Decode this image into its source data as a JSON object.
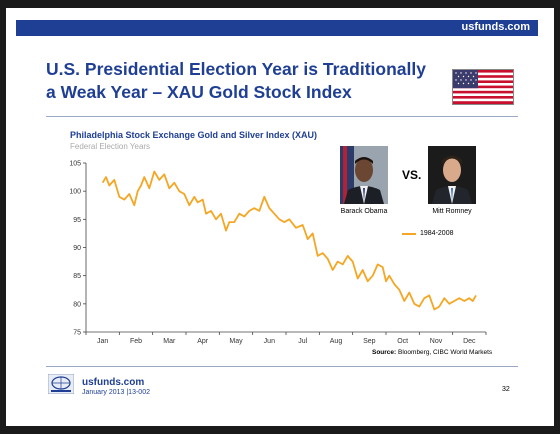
{
  "header": {
    "site": "usfunds.com"
  },
  "title_line1": "U.S. Presidential Election Year is Traditionally",
  "title_line2": "a Weak Year – XAU Gold Stock Index",
  "figure": {
    "candidate_left": "Barack Obama",
    "candidate_right": "Mitt Romney",
    "vs_label": "VS.",
    "source_label": "Source:",
    "source_text": "Bloomberg, CIBC World Markets"
  },
  "footer": {
    "site": "usfunds.com",
    "date_code": "January 2013 |13-002",
    "page_number": "32"
  },
  "icons": [
    "us-flag-icon",
    "usfunds-logo-icon"
  ],
  "colors": {
    "brand_blue": "#1f3f94",
    "series_line": "#f5a623",
    "flag_red": "#c8102e",
    "flag_blue": "#3c3b6e"
  },
  "chart_data": {
    "type": "line",
    "title": "Philadelphia Stock Exchange Gold and Silver Index (XAU)",
    "subtitle": "Federal Election Years",
    "xlabel": "",
    "ylabel": "",
    "ylim": [
      75,
      105
    ],
    "yticks": [
      75,
      80,
      85,
      90,
      95,
      100,
      105
    ],
    "categories": [
      "Jan",
      "Feb",
      "Mar",
      "Apr",
      "May",
      "Jun",
      "Jul",
      "Aug",
      "Sep",
      "Oct",
      "Nov",
      "Dec"
    ],
    "grid": false,
    "legend_position": "top-right",
    "series": [
      {
        "name": "1984-2008",
        "color": "#f5a623",
        "x": [
          0,
          0.1,
          0.2,
          0.35,
          0.5,
          0.65,
          0.8,
          0.95,
          1.05,
          1.15,
          1.25,
          1.4,
          1.55,
          1.7,
          1.85,
          2.0,
          2.15,
          2.3,
          2.45,
          2.6,
          2.75,
          2.85,
          3.0,
          3.1,
          3.25,
          3.4,
          3.55,
          3.7,
          3.8,
          3.95,
          4.1,
          4.25,
          4.4,
          4.55,
          4.7,
          4.85,
          5.0,
          5.15,
          5.3,
          5.45,
          5.6,
          5.8,
          6.0,
          6.15,
          6.3,
          6.45,
          6.6,
          6.75,
          6.9,
          7.05,
          7.2,
          7.35,
          7.5,
          7.65,
          7.8,
          7.95,
          8.1,
          8.25,
          8.4,
          8.5,
          8.6,
          8.75,
          8.9,
          9.05,
          9.2,
          9.35,
          9.5,
          9.65,
          9.8,
          9.95,
          10.1,
          10.25,
          10.4,
          10.55,
          10.7,
          10.85,
          11.0,
          11.1,
          11.2
        ],
        "values": [
          101.5,
          102.5,
          101.0,
          102.0,
          99.0,
          98.5,
          99.5,
          97.5,
          100.0,
          101.0,
          102.5,
          100.5,
          103.5,
          102.0,
          103.0,
          100.5,
          101.5,
          100.0,
          99.5,
          97.5,
          99.0,
          98.0,
          98.5,
          96.0,
          96.5,
          95.0,
          96.0,
          93.0,
          94.5,
          94.5,
          96.0,
          95.5,
          96.5,
          97.0,
          96.5,
          99.0,
          97.0,
          96.0,
          95.0,
          94.5,
          95.0,
          93.5,
          94.0,
          91.5,
          92.5,
          88.5,
          89.0,
          88.0,
          86.0,
          87.5,
          87.0,
          88.5,
          87.5,
          84.5,
          86.0,
          84.0,
          85.0,
          87.0,
          86.5,
          84.0,
          85.0,
          83.5,
          82.5,
          80.5,
          82.0,
          80.0,
          79.5,
          81.0,
          81.5,
          79.0,
          79.5,
          81.0,
          80.0,
          80.5,
          81.0,
          80.5,
          81.0,
          80.5,
          81.5
        ]
      }
    ]
  }
}
